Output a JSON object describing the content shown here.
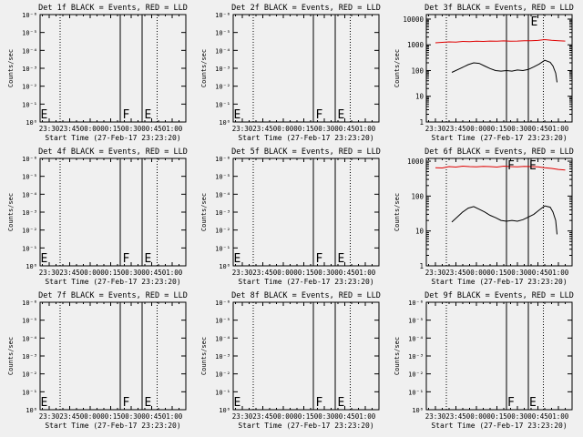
{
  "figure": {
    "background": "#f0f0f0",
    "axis_color": "#000000"
  },
  "chart_data": [
    {
      "type": "line",
      "title": "Det 1f BLACK = Events, RED = LLD",
      "xlabel": "Start Time (27-Feb-17 23:23:20)",
      "ylabel": "Counts/sec",
      "x_ticks": [
        "23:30",
        "23:45",
        "00:00",
        "00:15",
        "00:30",
        "00:45",
        "01:00"
      ],
      "y_scale": "log",
      "y_ticks": [
        "10⁰",
        "10⁻¹",
        "10⁻²",
        "10⁻³",
        "10⁻⁴",
        "10⁻⁵",
        "10⁻⁶"
      ],
      "dotted_lines": [
        "23:38",
        "00:49"
      ],
      "solid_lines": [
        "00:22",
        "00:38"
      ],
      "annotations": [
        {
          "text": "E",
          "x": "23:23"
        },
        {
          "text": "F",
          "x": "00:23"
        },
        {
          "text": "E",
          "x": "00:39"
        }
      ],
      "series": []
    },
    {
      "type": "line",
      "title": "Det 2f BLACK = Events, RED = LLD",
      "xlabel": "Start Time (27-Feb-17 23:23:20)",
      "ylabel": "Counts/sec",
      "x_ticks": [
        "23:30",
        "23:45",
        "00:00",
        "00:15",
        "00:30",
        "00:45",
        "01:00"
      ],
      "y_scale": "log",
      "y_ticks": [
        "10⁰",
        "10⁻¹",
        "10⁻²",
        "10⁻³",
        "10⁻⁴",
        "10⁻⁵",
        "10⁻⁶"
      ],
      "dotted_lines": [
        "23:38",
        "00:49"
      ],
      "solid_lines": [
        "00:22",
        "00:38"
      ],
      "annotations": [
        {
          "text": "E",
          "x": "23:23"
        },
        {
          "text": "F",
          "x": "00:23"
        },
        {
          "text": "E",
          "x": "00:39"
        }
      ],
      "series": []
    },
    {
      "type": "line",
      "title": "Det 3f BLACK = Events, RED = LLD",
      "xlabel": "Start Time (27-Feb-17 23:23:20)",
      "ylabel": "Counts/sec",
      "x_ticks": [
        "23:30",
        "23:45",
        "00:00",
        "00:15",
        "00:30",
        "00:45",
        "01:00"
      ],
      "y_scale": "log",
      "y_ticks": [
        "1",
        "10",
        "100",
        "1000",
        "10000"
      ],
      "ylim": [
        1,
        15000
      ],
      "dotted_lines": [
        "23:38",
        "00:49"
      ],
      "solid_lines": [
        "00:22",
        "00:38"
      ],
      "annotations": [
        {
          "text": "E",
          "x": "00:39"
        }
      ],
      "series": [
        {
          "color": "#e00000",
          "x_min": [
            0,
            5,
            10,
            15,
            20,
            25,
            30,
            35,
            40,
            45,
            50,
            55,
            60,
            65,
            70,
            75,
            80,
            85,
            90,
            95
          ],
          "values": [
            1200,
            1250,
            1300,
            1280,
            1350,
            1320,
            1380,
            1360,
            1400,
            1390,
            1420,
            1380,
            1400,
            1450,
            1430,
            1480,
            1600,
            1500,
            1450,
            1400
          ]
        },
        {
          "color": "#000000",
          "x_min": [
            12,
            18,
            24,
            28,
            32,
            36,
            40,
            44,
            48,
            52,
            56,
            60,
            64,
            68,
            72,
            76,
            80,
            84,
            86,
            88,
            89
          ],
          "values": [
            85,
            120,
            170,
            200,
            190,
            150,
            120,
            100,
            95,
            100,
            95,
            105,
            100,
            110,
            140,
            180,
            250,
            210,
            150,
            80,
            35
          ]
        }
      ]
    },
    {
      "type": "line",
      "title": "Det 4f BLACK = Events, RED = LLD",
      "xlabel": "Start Time (27-Feb-17 23:23:20)",
      "ylabel": "Counts/sec",
      "x_ticks": [
        "23:30",
        "23:45",
        "00:00",
        "00:15",
        "00:30",
        "00:45",
        "01:00"
      ],
      "y_scale": "log",
      "y_ticks": [
        "10⁰",
        "10⁻¹",
        "10⁻²",
        "10⁻³",
        "10⁻⁴",
        "10⁻⁵",
        "10⁻⁶"
      ],
      "dotted_lines": [
        "23:38",
        "00:49"
      ],
      "solid_lines": [
        "00:22",
        "00:38"
      ],
      "annotations": [
        {
          "text": "E",
          "x": "23:23"
        },
        {
          "text": "F",
          "x": "00:23"
        },
        {
          "text": "E",
          "x": "00:39"
        }
      ],
      "series": []
    },
    {
      "type": "line",
      "title": "Det 5f BLACK = Events, RED = LLD",
      "xlabel": "Start Time (27-Feb-17 23:23:20)",
      "ylabel": "Counts/sec",
      "x_ticks": [
        "23:30",
        "23:45",
        "00:00",
        "00:15",
        "00:30",
        "00:45",
        "01:00"
      ],
      "y_scale": "log",
      "y_ticks": [
        "10⁰",
        "10⁻¹",
        "10⁻²",
        "10⁻³",
        "10⁻⁴",
        "10⁻⁵",
        "10⁻⁶"
      ],
      "dotted_lines": [
        "23:38",
        "00:49"
      ],
      "solid_lines": [
        "00:22",
        "00:38"
      ],
      "annotations": [
        {
          "text": "E",
          "x": "23:23"
        },
        {
          "text": "F",
          "x": "00:23"
        },
        {
          "text": "E",
          "x": "00:39"
        }
      ],
      "series": []
    },
    {
      "type": "line",
      "title": "Det 6f BLACK = Events, RED = LLD",
      "xlabel": "Start Time (27-Feb-17 23:23:20)",
      "ylabel": "Counts/sec",
      "x_ticks": [
        "23:30",
        "23:45",
        "00:00",
        "00:15",
        "00:30",
        "00:45",
        "01:00"
      ],
      "y_scale": "log",
      "y_ticks": [
        "1",
        "10",
        "100",
        "1000"
      ],
      "ylim": [
        1,
        1200
      ],
      "dotted_lines": [
        "23:38",
        "00:49"
      ],
      "solid_lines": [
        "00:22",
        "00:38"
      ],
      "annotations": [
        {
          "text": "F",
          "x": "00:22"
        },
        {
          "text": "E",
          "x": "00:38"
        }
      ],
      "series": [
        {
          "color": "#e00000",
          "x_min": [
            0,
            5,
            10,
            15,
            20,
            25,
            30,
            35,
            40,
            45,
            50,
            55,
            60,
            65,
            70,
            75,
            80,
            85,
            90,
            95
          ],
          "values": [
            650,
            640,
            700,
            680,
            720,
            700,
            690,
            710,
            700,
            680,
            720,
            700,
            690,
            710,
            700,
            690,
            650,
            620,
            580,
            560
          ]
        },
        {
          "color": "#000000",
          "x_min": [
            12,
            16,
            20,
            24,
            28,
            32,
            36,
            40,
            44,
            48,
            52,
            56,
            60,
            64,
            68,
            72,
            76,
            80,
            84,
            86,
            88,
            89
          ],
          "values": [
            18,
            25,
            35,
            45,
            50,
            42,
            35,
            28,
            24,
            20,
            19,
            20,
            19,
            21,
            25,
            30,
            40,
            52,
            48,
            35,
            20,
            8
          ]
        }
      ]
    },
    {
      "type": "line",
      "title": "Det 7f BLACK = Events, RED = LLD",
      "xlabel": "Start Time (27-Feb-17 23:23:20)",
      "ylabel": "Counts/sec",
      "x_ticks": [
        "23:30",
        "23:45",
        "00:00",
        "00:15",
        "00:30",
        "00:45",
        "01:00"
      ],
      "y_scale": "log",
      "y_ticks": [
        "10⁰",
        "10⁻¹",
        "10⁻²",
        "10⁻³",
        "10⁻⁴",
        "10⁻⁵",
        "10⁻⁶"
      ],
      "dotted_lines": [
        "23:38",
        "00:49"
      ],
      "solid_lines": [
        "00:22",
        "00:38"
      ],
      "annotations": [
        {
          "text": "E",
          "x": "23:23"
        },
        {
          "text": "F",
          "x": "00:23"
        },
        {
          "text": "E",
          "x": "00:39"
        }
      ],
      "series": []
    },
    {
      "type": "line",
      "title": "Det 8f BLACK = Events, RED = LLD",
      "xlabel": "Start Time (27-Feb-17 23:23:20)",
      "ylabel": "Counts/sec",
      "x_ticks": [
        "23:30",
        "23:45",
        "00:00",
        "00:15",
        "00:30",
        "00:45",
        "01:00"
      ],
      "y_scale": "log",
      "y_ticks": [
        "10⁰",
        "10⁻¹",
        "10⁻²",
        "10⁻³",
        "10⁻⁴",
        "10⁻⁵",
        "10⁻⁶"
      ],
      "dotted_lines": [
        "23:38",
        "00:49"
      ],
      "solid_lines": [
        "00:22",
        "00:38"
      ],
      "annotations": [
        {
          "text": "E",
          "x": "23:23"
        },
        {
          "text": "F",
          "x": "00:23"
        },
        {
          "text": "E",
          "x": "00:39"
        }
      ],
      "series": []
    },
    {
      "type": "line",
      "title": "Det 9f BLACK = Events, RED = LLD",
      "xlabel": "Start Time (27-Feb-17 23:23:20)",
      "ylabel": "Counts/sec",
      "x_ticks": [
        "23:30",
        "23:45",
        "00:00",
        "00:15",
        "00:30",
        "00:45",
        "01:00"
      ],
      "y_scale": "log",
      "y_ticks": [
        "10⁰",
        "10⁻¹",
        "10⁻²",
        "10⁻³",
        "10⁻⁴",
        "10⁻⁵",
        "10⁻⁶"
      ],
      "dotted_lines": [
        "23:38",
        "00:49"
      ],
      "solid_lines": [
        "00:22",
        "00:38"
      ],
      "annotations": [
        {
          "text": "F",
          "x": "00:22"
        },
        {
          "text": "E",
          "x": "00:38"
        }
      ],
      "series": []
    }
  ]
}
